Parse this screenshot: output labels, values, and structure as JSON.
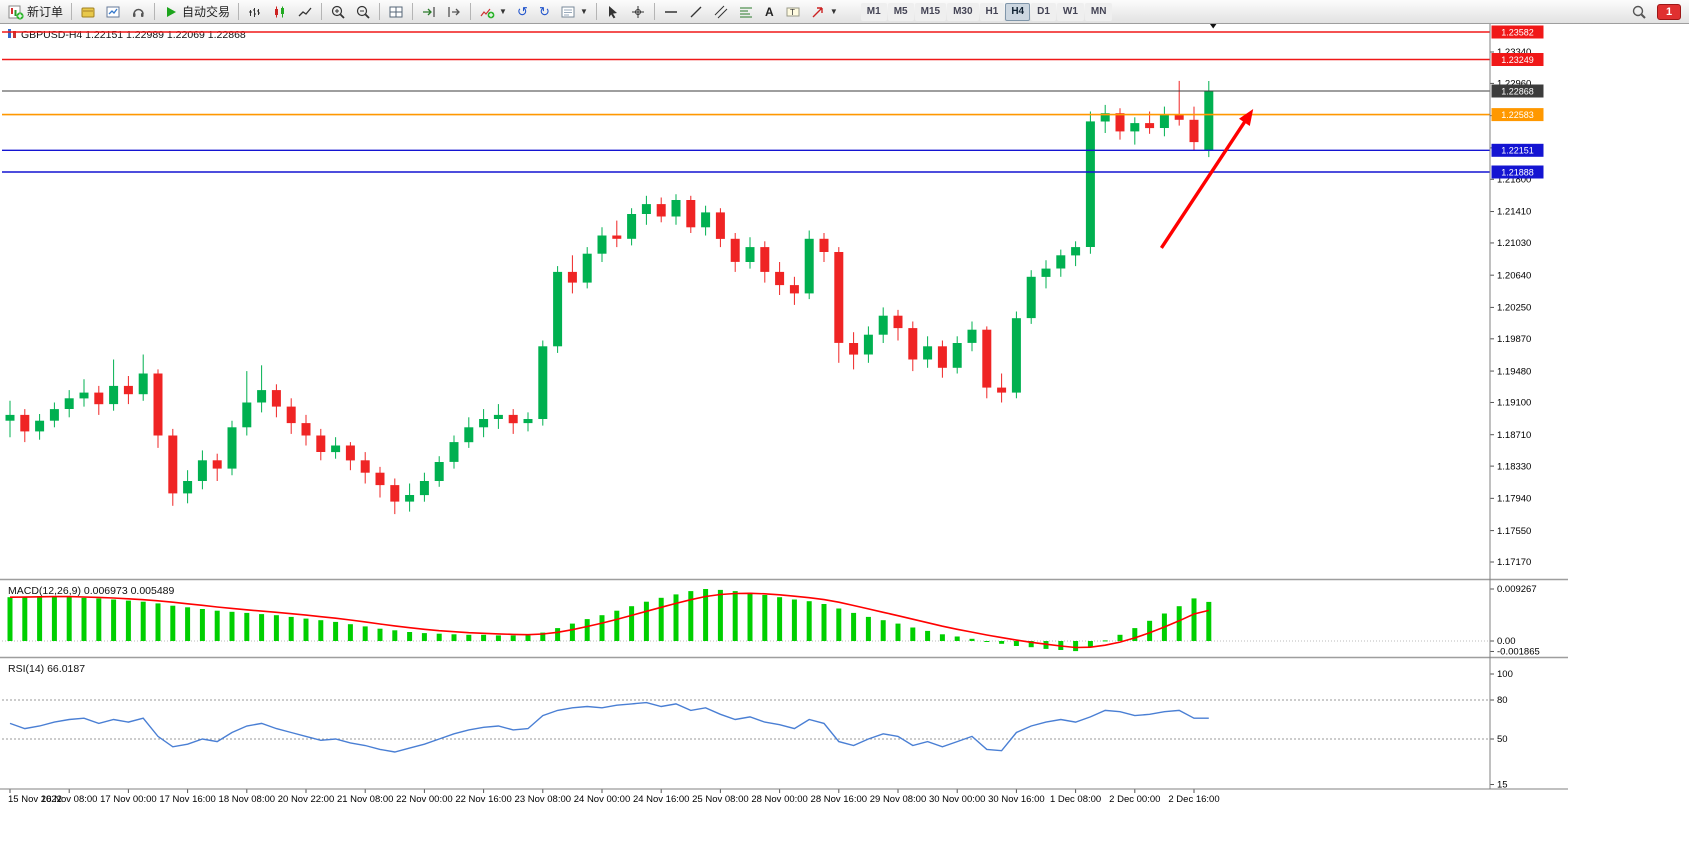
{
  "toolbar": {
    "new_order_label": "新订单",
    "autotrading_label": "自动交易",
    "timeframes": [
      "M1",
      "M5",
      "M15",
      "M30",
      "H1",
      "H4",
      "D1",
      "W1",
      "MN"
    ],
    "active_timeframe": "H4",
    "notification_badge": "1"
  },
  "chart": {
    "title": "GBPUSD-H4 1.22151 1.22989 1.22069 1.22868",
    "symbol": "GBPUSD",
    "timeframe": "H4",
    "current_candle": {
      "open": "1.22151",
      "high": "1.22989",
      "low": "1.22069",
      "close": "1.22868"
    }
  },
  "colors": {
    "candle_up": "#00b050",
    "candle_down": "#ef2424",
    "macd_bar": "#00cf00",
    "macd_signal": "#ff0000",
    "rsi_line": "#4a7fd4",
    "arrow": "#ff0000",
    "hline_red": "#f01818",
    "hline_orange": "#ff9800",
    "hline_blue": "#1414d2",
    "bid_line": "#3c3c3c"
  },
  "price_axis": [
    "1.23340",
    "1.22960",
    "1.22570",
    "1.22180",
    "1.21800",
    "1.21410",
    "1.21030",
    "1.20640",
    "1.20250",
    "1.19870",
    "1.19480",
    "1.19100",
    "1.18710",
    "1.18330",
    "1.17940",
    "1.17550",
    "1.17170"
  ],
  "time_axis": [
    "15 Nov 2022",
    "16 Nov 08:00",
    "17 Nov 00:00",
    "17 Nov 16:00",
    "18 Nov 08:00",
    "20 Nov 22:00",
    "21 Nov 08:00",
    "22 Nov 00:00",
    "22 Nov 16:00",
    "23 Nov 08:00",
    "24 Nov 00:00",
    "24 Nov 16:00",
    "25 Nov 08:00",
    "28 Nov 00:00",
    "28 Nov 16:00",
    "29 Nov 08:00",
    "30 Nov 00:00",
    "30 Nov 16:00",
    "1 Dec 08:00",
    "2 Dec 00:00",
    "2 Dec 16:00"
  ],
  "hlines": [
    {
      "label": "1.23582",
      "value": 1.23582,
      "color": "#f01818",
      "width": 1.6
    },
    {
      "label": "1.23249",
      "value": 1.23249,
      "color": "#f01818",
      "width": 1.6
    },
    {
      "label": "1.22868",
      "value": 1.22868,
      "color": "#3c3c3c",
      "width": 1.0
    },
    {
      "label": "1.22583",
      "value": 1.22583,
      "color": "#ff9800",
      "width": 1.6
    },
    {
      "label": "1.22151",
      "value": 1.22151,
      "color": "#1414d2",
      "width": 1.4
    },
    {
      "label": "1.21888",
      "value": 1.21888,
      "color": "#1414d2",
      "width": 1.4
    }
  ],
  "indicators": {
    "macd": {
      "label": "MACD(12,26,9) 0.006973 0.005489",
      "axis": [
        {
          "label": "0.009267",
          "value": 0.009267
        },
        {
          "label": "0.00",
          "value": 0
        },
        {
          "label": "-0.001865",
          "value": -0.001865
        }
      ]
    },
    "rsi": {
      "label": "RSI(14) 66.0187",
      "axis": [
        {
          "label": "100",
          "value": 100
        },
        {
          "label": "80",
          "value": 80
        },
        {
          "label": "50",
          "value": 50
        },
        {
          "label": "15",
          "value": 15
        }
      ],
      "levels": [
        80,
        50
      ]
    }
  },
  "annotations": {
    "arrow": {
      "from_index": 77.8,
      "from_price": 1.2097,
      "to_index": 84.0,
      "to_price": 1.2265
    },
    "top_marker": {
      "index": 81.3,
      "price": 1.2366
    }
  },
  "chart_data": [
    {
      "type": "candlestick",
      "symbol": "GBPUSD",
      "timeframe": "H4",
      "ylim": [
        1.1717,
        1.237
      ],
      "label_every_n_candles": 4,
      "ohlc": [
        [
          1.1888,
          1.1912,
          1.1868,
          1.1895
        ],
        [
          1.1895,
          1.1902,
          1.1862,
          1.1875
        ],
        [
          1.1875,
          1.1896,
          1.1865,
          1.1888
        ],
        [
          1.1888,
          1.191,
          1.188,
          1.1902
        ],
        [
          1.1902,
          1.1925,
          1.1892,
          1.1915
        ],
        [
          1.1915,
          1.1938,
          1.1905,
          1.1922
        ],
        [
          1.1922,
          1.193,
          1.1895,
          1.1908
        ],
        [
          1.1908,
          1.1962,
          1.19,
          1.193
        ],
        [
          1.193,
          1.1942,
          1.1908,
          1.192
        ],
        [
          1.192,
          1.1968,
          1.1912,
          1.1945
        ],
        [
          1.1945,
          1.195,
          1.1855,
          1.187
        ],
        [
          1.187,
          1.1878,
          1.1785,
          1.18
        ],
        [
          1.18,
          1.1828,
          1.1788,
          1.1815
        ],
        [
          1.1815,
          1.1852,
          1.1805,
          1.184
        ],
        [
          1.184,
          1.1848,
          1.1815,
          1.183
        ],
        [
          1.183,
          1.1888,
          1.1822,
          1.188
        ],
        [
          1.188,
          1.1948,
          1.187,
          1.191
        ],
        [
          1.191,
          1.1955,
          1.1898,
          1.1925
        ],
        [
          1.1925,
          1.1932,
          1.1892,
          1.1905
        ],
        [
          1.1905,
          1.1915,
          1.1872,
          1.1885
        ],
        [
          1.1885,
          1.1895,
          1.1858,
          1.187
        ],
        [
          1.187,
          1.1878,
          1.184,
          1.185
        ],
        [
          1.185,
          1.1868,
          1.1842,
          1.1858
        ],
        [
          1.1858,
          1.1862,
          1.1828,
          1.184
        ],
        [
          1.184,
          1.185,
          1.1812,
          1.1825
        ],
        [
          1.1825,
          1.1832,
          1.1795,
          1.181
        ],
        [
          1.181,
          1.1818,
          1.1775,
          1.179
        ],
        [
          1.179,
          1.1812,
          1.1778,
          1.1798
        ],
        [
          1.1798,
          1.1825,
          1.179,
          1.1815
        ],
        [
          1.1815,
          1.1845,
          1.1808,
          1.1838
        ],
        [
          1.1838,
          1.187,
          1.183,
          1.1862
        ],
        [
          1.1862,
          1.1892,
          1.1855,
          1.188
        ],
        [
          1.188,
          1.1902,
          1.1868,
          1.189
        ],
        [
          1.189,
          1.1908,
          1.1878,
          1.1895
        ],
        [
          1.1895,
          1.1902,
          1.1872,
          1.1885
        ],
        [
          1.1885,
          1.1898,
          1.1875,
          1.189
        ],
        [
          1.189,
          1.1985,
          1.1882,
          1.1978
        ],
        [
          1.1978,
          1.2075,
          1.197,
          1.2068
        ],
        [
          1.2068,
          1.2088,
          1.2042,
          1.2055
        ],
        [
          1.2055,
          1.2098,
          1.2048,
          1.209
        ],
        [
          1.209,
          1.2122,
          1.208,
          1.2112
        ],
        [
          1.2112,
          1.213,
          1.2098,
          1.2108
        ],
        [
          1.2108,
          1.2145,
          1.21,
          1.2138
        ],
        [
          1.2138,
          1.216,
          1.2125,
          1.215
        ],
        [
          1.215,
          1.2158,
          1.2128,
          1.2135
        ],
        [
          1.2135,
          1.2162,
          1.2125,
          1.2155
        ],
        [
          1.2155,
          1.216,
          1.2115,
          1.2122
        ],
        [
          1.2122,
          1.2148,
          1.2112,
          1.214
        ],
        [
          1.214,
          1.2145,
          1.2098,
          1.2108
        ],
        [
          1.2108,
          1.2115,
          1.2068,
          1.208
        ],
        [
          1.208,
          1.211,
          1.2072,
          1.2098
        ],
        [
          1.2098,
          1.2105,
          1.2055,
          1.2068
        ],
        [
          1.2068,
          1.208,
          1.204,
          1.2052
        ],
        [
          1.2052,
          1.2062,
          1.2028,
          1.2042
        ],
        [
          1.2042,
          1.2118,
          1.2035,
          1.2108
        ],
        [
          1.2108,
          1.2115,
          1.208,
          1.2092
        ],
        [
          1.2092,
          1.2098,
          1.1958,
          1.1982
        ],
        [
          1.1982,
          1.1995,
          1.195,
          1.1968
        ],
        [
          1.1968,
          1.2002,
          1.1958,
          1.1992
        ],
        [
          1.1992,
          1.2025,
          1.1982,
          1.2015
        ],
        [
          1.2015,
          1.2022,
          1.1985,
          1.2
        ],
        [
          1.2,
          1.2008,
          1.1948,
          1.1962
        ],
        [
          1.1962,
          1.199,
          1.1952,
          1.1978
        ],
        [
          1.1978,
          1.1985,
          1.194,
          1.1952
        ],
        [
          1.1952,
          1.199,
          1.1945,
          1.1982
        ],
        [
          1.1982,
          1.2008,
          1.1972,
          1.1998
        ],
        [
          1.1998,
          1.2002,
          1.1915,
          1.1928
        ],
        [
          1.1928,
          1.1945,
          1.191,
          1.1922
        ],
        [
          1.1922,
          1.202,
          1.1915,
          1.2012
        ],
        [
          1.2012,
          1.207,
          1.2005,
          1.2062
        ],
        [
          1.2062,
          1.2082,
          1.2048,
          1.2072
        ],
        [
          1.2072,
          1.2095,
          1.2062,
          1.2088
        ],
        [
          1.2088,
          1.2105,
          1.2075,
          1.2098
        ],
        [
          1.2098,
          1.2262,
          1.209,
          1.225
        ],
        [
          1.225,
          1.227,
          1.2236,
          1.226
        ],
        [
          1.226,
          1.2266,
          1.2228,
          1.2238
        ],
        [
          1.2238,
          1.2255,
          1.2222,
          1.2248
        ],
        [
          1.2248,
          1.2262,
          1.2235,
          1.2242
        ],
        [
          1.2242,
          1.2268,
          1.2232,
          1.2258
        ],
        [
          1.2258,
          1.2299,
          1.2245,
          1.2252
        ],
        [
          1.2252,
          1.2268,
          1.2215,
          1.2225
        ],
        [
          1.22151,
          1.22989,
          1.22069,
          1.22868
        ]
      ]
    },
    {
      "type": "bar",
      "name": "MACD(12,26,9)",
      "main_value": 0.006973,
      "signal_value": 0.005489,
      "ylim": [
        -0.001865,
        0.009267
      ],
      "values": [
        0.0078,
        0.0079,
        0.008,
        0.008,
        0.0079,
        0.0077,
        0.0076,
        0.0074,
        0.0072,
        0.007,
        0.0067,
        0.0063,
        0.006,
        0.0057,
        0.0054,
        0.0052,
        0.005,
        0.0048,
        0.0046,
        0.0043,
        0.004,
        0.0037,
        0.0034,
        0.003,
        0.0026,
        0.0022,
        0.0019,
        0.0016,
        0.0014,
        0.0013,
        0.0012,
        0.0011,
        0.0011,
        0.001,
        0.001,
        0.001,
        0.0015,
        0.0023,
        0.0031,
        0.0039,
        0.0046,
        0.0054,
        0.0062,
        0.007,
        0.0077,
        0.0083,
        0.0089,
        0.009267,
        0.0091,
        0.0089,
        0.0086,
        0.0082,
        0.0078,
        0.0074,
        0.0071,
        0.0066,
        0.0058,
        0.005,
        0.0043,
        0.0037,
        0.0031,
        0.0024,
        0.0018,
        0.0012,
        0.0008,
        0.0004,
        -0.0001,
        -0.0005,
        -0.0009,
        -0.0011,
        -0.0014,
        -0.0016,
        -0.0018,
        -0.001,
        0.0001,
        0.0011,
        0.0023,
        0.0036,
        0.0049,
        0.0062,
        0.0076,
        0.006973
      ]
    },
    {
      "type": "line",
      "name": "RSI(14)",
      "current": 66.0187,
      "ylim": [
        10,
        100
      ],
      "levels": [
        80,
        50
      ],
      "values": [
        62,
        58,
        60,
        63,
        65,
        66,
        62,
        65,
        63,
        66,
        52,
        44,
        46,
        50,
        48,
        55,
        60,
        62,
        58,
        55,
        52,
        49,
        50,
        47,
        45,
        42,
        40,
        43,
        46,
        50,
        54,
        57,
        59,
        60,
        57,
        58,
        68,
        72,
        74,
        75,
        74,
        76,
        77,
        78,
        75,
        77,
        72,
        74,
        69,
        65,
        67,
        63,
        61,
        58,
        65,
        62,
        48,
        45,
        50,
        54,
        52,
        45,
        48,
        44,
        48,
        52,
        42,
        41,
        55,
        60,
        63,
        65,
        63,
        67,
        72,
        71,
        68,
        69,
        71,
        72,
        66,
        66.0187
      ]
    }
  ]
}
